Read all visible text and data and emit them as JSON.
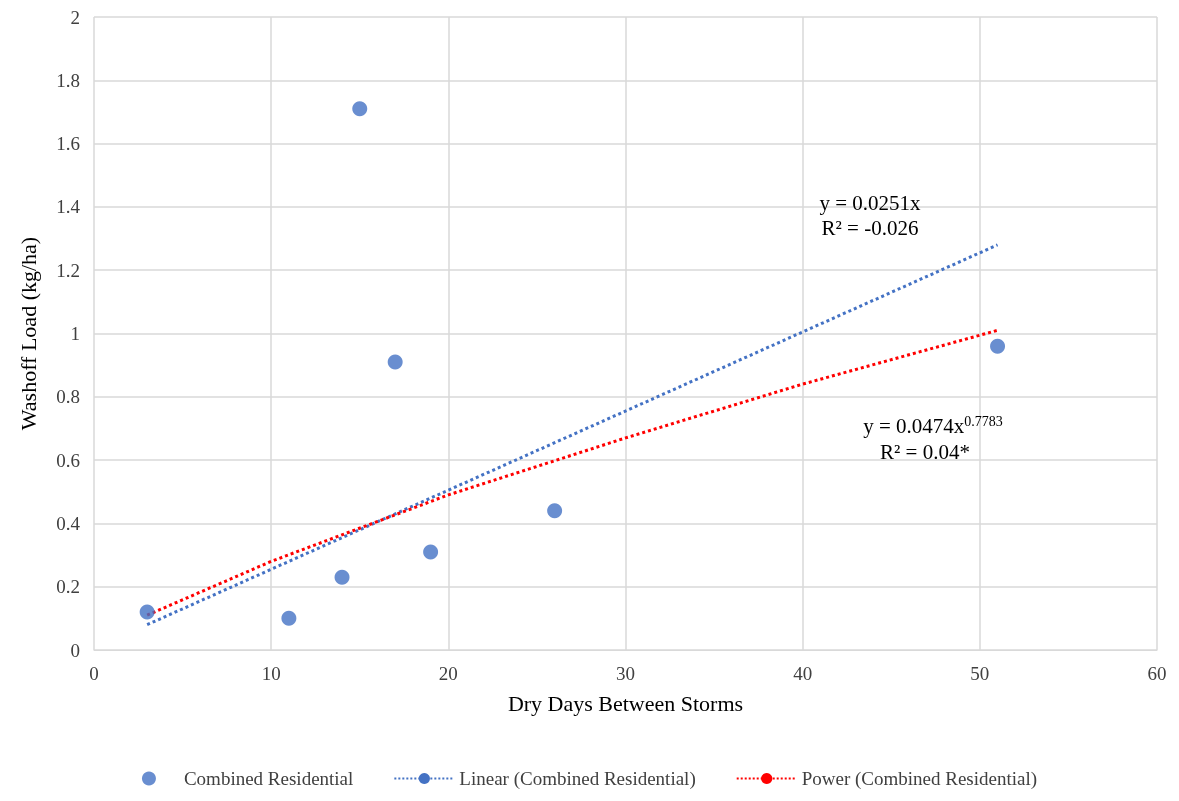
{
  "chart_data": {
    "type": "scatter",
    "xlabel": "Dry Days Between Storms",
    "ylabel": "Washoff Load (kg/ha)",
    "xlim": [
      0,
      60
    ],
    "xticks": [
      0,
      10,
      20,
      30,
      40,
      50,
      60
    ],
    "ylim": [
      0,
      2
    ],
    "yticks": [
      0,
      0.2,
      0.4,
      0.6,
      0.8,
      1,
      1.2,
      1.4,
      1.6,
      1.8,
      2
    ],
    "grid": true,
    "legend": "bottom",
    "series": [
      {
        "name": "Combined Residential",
        "color": "#4472c4",
        "marker": "circle",
        "x": [
          3,
          11,
          14,
          15,
          17,
          19,
          26,
          51
        ],
        "values": [
          0.12,
          0.1,
          0.23,
          1.71,
          0.91,
          0.31,
          0.44,
          0.96
        ]
      },
      {
        "name": "Linear (Combined Residential)",
        "type": "line",
        "color": "#4472c4",
        "marker": "none",
        "line_style": "dotted",
        "x": [
          3,
          51
        ],
        "values": [
          0.08,
          1.28
        ]
      },
      {
        "name": "Power (Combined Residential)",
        "type": "line",
        "color": "#ff0000",
        "marker": "none",
        "line_style": "dotted",
        "x": [
          3,
          10,
          20,
          30,
          40,
          51
        ],
        "values": [
          0.11,
          0.28,
          0.49,
          0.67,
          0.84,
          1.01
        ]
      }
    ],
    "annotations": [
      "y = 0.0251x",
      "R² = -0.026",
      "y = 0.0474x$^{0.7783}$",
      "R² = 0.04*"
    ]
  }
}
